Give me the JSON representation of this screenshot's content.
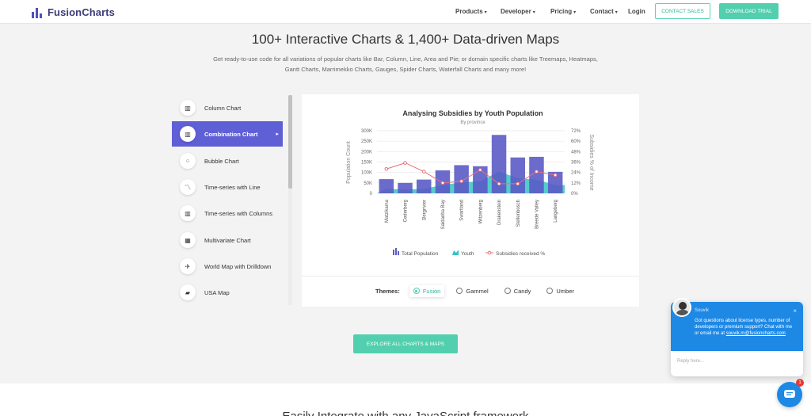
{
  "nav": {
    "logo_text": "FusionCharts",
    "menu": [
      {
        "label": "Products",
        "caret": "▾"
      },
      {
        "label": "Developer",
        "caret": "▾"
      },
      {
        "label": "Pricing",
        "caret": "▾"
      },
      {
        "label": "Contact",
        "caret": "▾"
      },
      {
        "label": "Login",
        "caret": ""
      }
    ],
    "contact_sales": "CONTACT SALES",
    "download_trial": "DOWNLOAD TRIAL"
  },
  "hero": {
    "title": "100+ Interactive Charts & 1,400+ Data-driven Maps",
    "subtitle": "Get ready-to-use code for all variations of popular charts like Bar, Column, Line, Area and Pie; or domain specific charts like Treemaps, Heatmaps, Gantt Charts, Marrimekko Charts, Gauges, Spider Charts, Waterfall Charts and many more!"
  },
  "sidebar": {
    "items": [
      {
        "label": "Column Chart",
        "icon": "column-chart-icon",
        "glyph": "▥"
      },
      {
        "label": "Combination Chart",
        "icon": "combination-chart-icon",
        "glyph": "▥"
      },
      {
        "label": "Bubble Chart",
        "icon": "bubble-chart-icon",
        "glyph": "⁘"
      },
      {
        "label": "Time-series with Line",
        "icon": "line-chart-icon",
        "glyph": "〽"
      },
      {
        "label": "Time-series with Columns",
        "icon": "columns-chart-icon",
        "glyph": "▥"
      },
      {
        "label": "Multivariate Chart",
        "icon": "multivariate-chart-icon",
        "glyph": "▦"
      },
      {
        "label": "World Map with Drilldown",
        "icon": "world-map-icon",
        "glyph": "✈"
      },
      {
        "label": "USA Map",
        "icon": "usa-map-icon",
        "glyph": "▰"
      }
    ],
    "active_index": 1,
    "active_arrow": "▸"
  },
  "chart_data": {
    "type": "combination",
    "title": "Analysing Subsidies by Youth Population",
    "subtitle": "By province",
    "categories": [
      "Matzikama",
      "Cederberg",
      "Bergrivier",
      "Saldanha Bay",
      "Swartland",
      "Witzenberg",
      "Drakenstein",
      "Stellenbosch",
      "Breede Valley",
      "Langeberg"
    ],
    "ylabel_left": "Population Count",
    "ylabel_right": "Subsidies % of Income",
    "left_ticks": [
      "0",
      "50K",
      "100K",
      "150K",
      "200K",
      "250K",
      "300K"
    ],
    "right_ticks": [
      "0%",
      "12%",
      "24%",
      "36%",
      "48%",
      "60%",
      "72%"
    ],
    "ylim_left": [
      0,
      300000
    ],
    "ylim_right": [
      0,
      72
    ],
    "series": [
      {
        "name": "Total Population",
        "type": "column",
        "color": "#5b5bc7",
        "values": [
          68000,
          50000,
          66000,
          110000,
          135000,
          130000,
          280000,
          172000,
          175000,
          103000
        ]
      },
      {
        "name": "Youth",
        "type": "area",
        "color": "#36c3c3",
        "values": [
          22000,
          18000,
          22000,
          40000,
          52000,
          58000,
          105000,
          72000,
          66000,
          40000
        ]
      },
      {
        "name": "Subsidies received %",
        "type": "line",
        "color": "#e8707a",
        "values": [
          28,
          35,
          25,
          12,
          14,
          27,
          11,
          11,
          25,
          21
        ]
      }
    ],
    "legend_position": "bottom"
  },
  "themes": {
    "label": "Themes:",
    "options": [
      "Fusion",
      "Gammel",
      "Candy",
      "Umber"
    ],
    "selected": 0
  },
  "cta": {
    "label": "EXPLORE ALL CHARTS & MAPS"
  },
  "band_text": "Easily Integrate with any JavaScript framework",
  "chat": {
    "agent_name": "Souvik",
    "close": "×",
    "message": "Got questions about license types, number of developers or premium support? Chat with me or email me at",
    "email": "souvik.m@fusioncharts.com",
    "placeholder": "Reply here...",
    "badge": "1"
  },
  "colors": {
    "accent": "#52cfae",
    "brand": "#5f5fd6",
    "chat": "#1e88e5"
  }
}
